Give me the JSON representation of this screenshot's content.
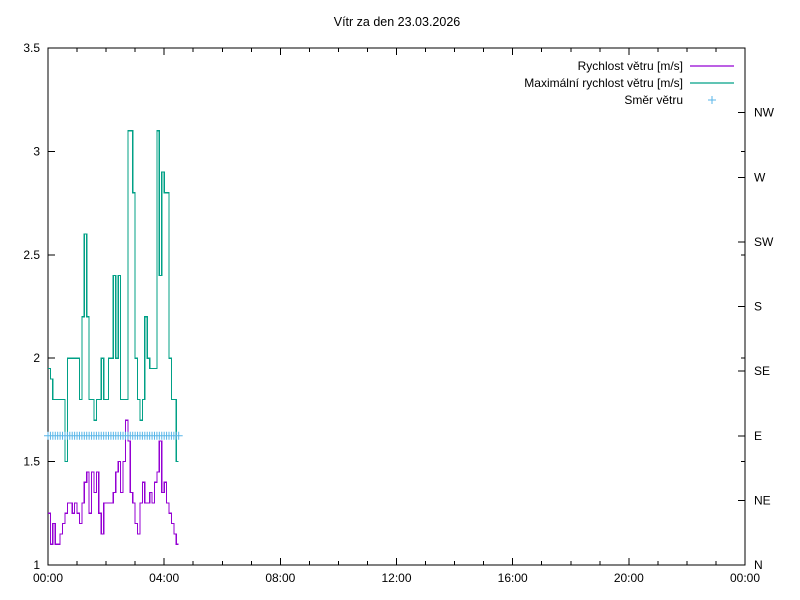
{
  "title": "Vítr za den 23.03.2026",
  "colors": {
    "wind_speed": "#9400D3",
    "wind_max": "#00A086",
    "wind_dir": "#58B6E8",
    "axis": "#000000",
    "background": "#FFFFFF"
  },
  "legend": [
    {
      "label": "Rychlost větru [m/s]",
      "style": "line",
      "color_key": "wind_speed"
    },
    {
      "label": "Maximální rychlost větru [m/s]",
      "style": "line",
      "color_key": "wind_max"
    },
    {
      "label": "Směr větru",
      "style": "plus",
      "color_key": "wind_dir"
    }
  ],
  "chart_data": {
    "type": "line",
    "title": "Vítr za den 23.03.2026",
    "grid": false,
    "legend_position": "top-right-inside",
    "x_axis": {
      "ticks_major": [
        "00:00",
        "04:00",
        "08:00",
        "12:00",
        "16:00",
        "20:00",
        "00:00"
      ],
      "range_minutes": [
        0,
        1440
      ],
      "major_every_minutes": 240,
      "minor_every_minutes": 60
    },
    "y_axis_left": {
      "ticks": [
        "1",
        "1.5",
        "2",
        "2.5",
        "3",
        "3.5"
      ],
      "tick_values": [
        1,
        1.5,
        2,
        2.5,
        3,
        3.5
      ],
      "range": [
        1,
        3.5
      ]
    },
    "y_axis_right": {
      "labels": [
        "N",
        "NE",
        "E",
        "SE",
        "S",
        "SW",
        "W",
        "NW"
      ],
      "value_step": 0.3125
    },
    "series": [
      {
        "id": "wind-speed",
        "name": "Rychlost větru [m/s]",
        "style": "steps",
        "color_key": "wind_speed",
        "unit": "m/s",
        "start_minute": 0,
        "step_minutes": 5,
        "values": [
          1.25,
          1.1,
          1.2,
          1.1,
          1.1,
          1.15,
          1.2,
          1.25,
          1.3,
          1.3,
          1.25,
          1.3,
          1.25,
          1.2,
          1.3,
          1.4,
          1.45,
          1.25,
          1.45,
          1.35,
          1.45,
          1.25,
          1.15,
          1.3,
          1.3,
          1.3,
          1.3,
          1.35,
          1.45,
          1.5,
          1.35,
          1.5,
          1.7,
          1.6,
          1.35,
          1.3,
          1.2,
          1.15,
          1.3,
          1.4,
          1.3,
          1.3,
          1.35,
          1.3,
          1.4,
          1.45,
          1.6,
          1.35,
          1.4,
          1.3,
          1.25,
          1.2,
          1.15,
          1.1,
          1.1
        ]
      },
      {
        "id": "wind-max",
        "name": "Maximální rychlost větru [m/s]",
        "style": "steps",
        "color_key": "wind_max",
        "unit": "m/s",
        "start_minute": 0,
        "step_minutes": 5,
        "values": [
          1.95,
          1.9,
          1.8,
          1.8,
          1.8,
          1.8,
          1.8,
          1.5,
          2.0,
          2.0,
          2.0,
          2.0,
          2.0,
          1.8,
          2.2,
          2.6,
          2.2,
          1.8,
          1.8,
          1.7,
          1.8,
          1.8,
          2.0,
          1.8,
          1.8,
          2.0,
          2.0,
          2.4,
          2.0,
          2.4,
          1.8,
          1.8,
          1.8,
          3.1,
          3.1,
          2.8,
          2.0,
          1.8,
          1.7,
          1.8,
          2.2,
          2.0,
          1.95,
          1.95,
          1.95,
          3.1,
          2.4,
          2.9,
          2.8,
          2.8,
          2.0,
          1.8,
          1.8,
          1.5,
          1.5
        ]
      },
      {
        "id": "wind-direction",
        "name": "Směr větru",
        "style": "plus",
        "color_key": "wind_dir",
        "direction": "E",
        "start_minute": 0,
        "end_minute": 270,
        "step_minutes": 5
      }
    ]
  }
}
